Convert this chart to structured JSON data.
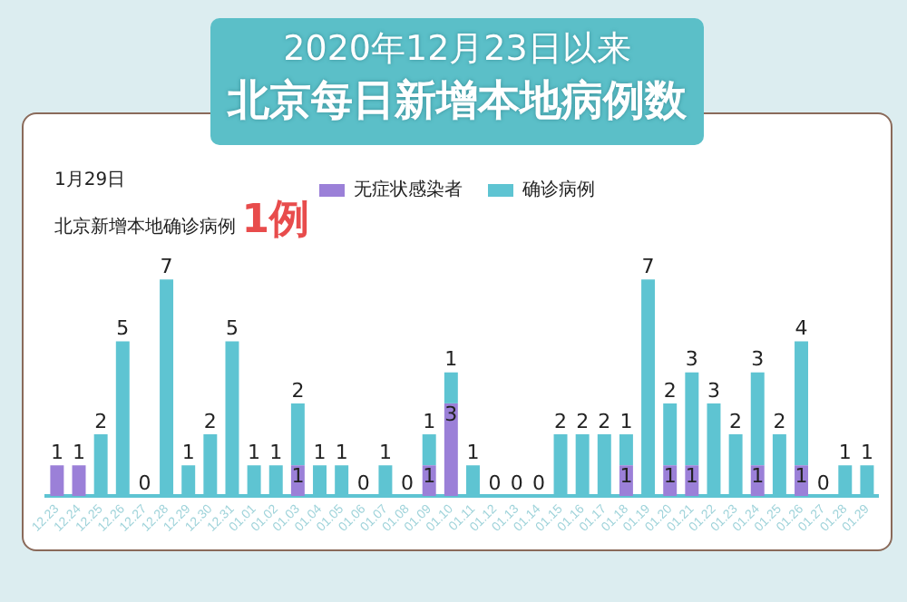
{
  "chart_data": {
    "type": "bar",
    "title": "北京每日新增本地病例数",
    "subtitle": "2020年12月23日以来",
    "annotations": [
      "1月29日",
      "北京新增本地确诊病例",
      "1例"
    ],
    "categories": [
      "12.23",
      "12.24",
      "12.25",
      "12.26",
      "12.27",
      "12.28",
      "12.29",
      "12.30",
      "12.31",
      "01.01",
      "01.02",
      "01.03",
      "01.04",
      "01.05",
      "01.06",
      "01.07",
      "01.08",
      "01.09",
      "01.10",
      "01.11",
      "01.12",
      "01.13",
      "01.14",
      "01.15",
      "01.16",
      "01.17",
      "01.18",
      "01.19",
      "01.20",
      "01.21",
      "01.22",
      "01.23",
      "01.24",
      "01.25",
      "01.26",
      "01.27",
      "01.28",
      "01.29"
    ],
    "stacked": true,
    "legend": "top",
    "grid": false,
    "tick_labels": "x",
    "series": [
      {
        "name": "无症状感染者",
        "color": "#9b80d8",
        "values": [
          1,
          1,
          0,
          0,
          0,
          0,
          0,
          0,
          0,
          0,
          0,
          1,
          0,
          0,
          0,
          0,
          0,
          1,
          3,
          0,
          0,
          0,
          0,
          0,
          0,
          0,
          1,
          0,
          1,
          1,
          0,
          0,
          1,
          0,
          1,
          0,
          0,
          0
        ],
        "value_labels": [
          "1",
          "1",
          null,
          null,
          null,
          null,
          null,
          null,
          null,
          null,
          null,
          "1",
          null,
          null,
          null,
          null,
          null,
          "1",
          "3",
          null,
          null,
          null,
          null,
          null,
          null,
          null,
          "1",
          null,
          "1",
          "1",
          null,
          null,
          "1",
          null,
          "1",
          null,
          null,
          null
        ]
      },
      {
        "name": "确诊病例",
        "color": "#5ec4d2",
        "values": [
          0,
          0,
          2,
          5,
          0,
          7,
          1,
          2,
          5,
          1,
          1,
          2,
          1,
          1,
          0,
          1,
          0,
          1,
          1,
          1,
          0,
          0,
          0,
          2,
          2,
          2,
          1,
          7,
          2,
          3,
          3,
          2,
          3,
          2,
          4,
          0,
          1,
          1
        ],
        "value_labels": [
          null,
          null,
          "2",
          "5",
          "0",
          "7",
          "1",
          "2",
          "5",
          "1",
          "1",
          "2",
          "1",
          "1",
          "0",
          "1",
          "0",
          "1",
          "1",
          "1",
          "0",
          "0",
          "0",
          "2",
          "2",
          "2",
          "1",
          "7",
          "2",
          "3",
          "3",
          "2",
          "3",
          "2",
          "4",
          "0",
          "1",
          "1"
        ]
      }
    ]
  }
}
